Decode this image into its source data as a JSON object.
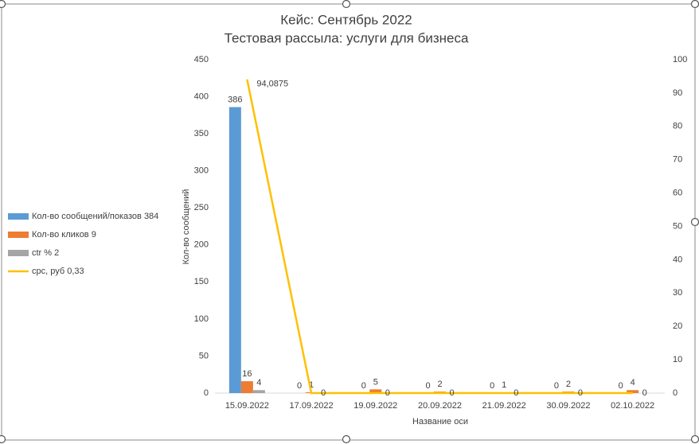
{
  "chart_data": {
    "type": "bar",
    "title": "Кейс: Сентябрь 2022",
    "subtitle": "Тестовая рассыла: услуги для бизнеса",
    "y_label": "Кол-во сообщений",
    "x_label": "Название оси",
    "categories": [
      "15.09.2022",
      "17.09.2022",
      "19.09.2022",
      "20.09.2022",
      "21.09.2022",
      "30.09.2022",
      "02.10.2022"
    ],
    "series": [
      {
        "name": "Кол-во сообщений/показов 384",
        "color": "#5b9bd5",
        "values": [
          386,
          0,
          0,
          0,
          0,
          0,
          0
        ]
      },
      {
        "name": "Кол-во кликов 9",
        "color": "#ed7d31",
        "values": [
          16,
          1,
          5,
          2,
          1,
          2,
          4
        ]
      },
      {
        "name": "ctr % 2",
        "color": "#a5a5a5",
        "values": [
          4,
          null,
          null,
          null,
          null,
          null,
          null
        ]
      },
      {
        "name": "cpc, руб 0,33",
        "color": "#ffc000",
        "type": "line",
        "axis": "y2",
        "values": [
          94.0875,
          0,
          0,
          0,
          0,
          0,
          0
        ],
        "value_labels": [
          "94,0875",
          "0",
          "0",
          "0",
          "0",
          "0",
          "0"
        ]
      }
    ],
    "ylim": [
      0,
      450
    ],
    "yticks": [
      0,
      50,
      100,
      150,
      200,
      250,
      300,
      350,
      400,
      450
    ],
    "y2lim": [
      0,
      100
    ],
    "y2ticks": [
      0,
      10,
      20,
      30,
      40,
      50,
      60,
      70,
      80,
      90,
      100
    ],
    "legend": "left",
    "grid": false
  }
}
